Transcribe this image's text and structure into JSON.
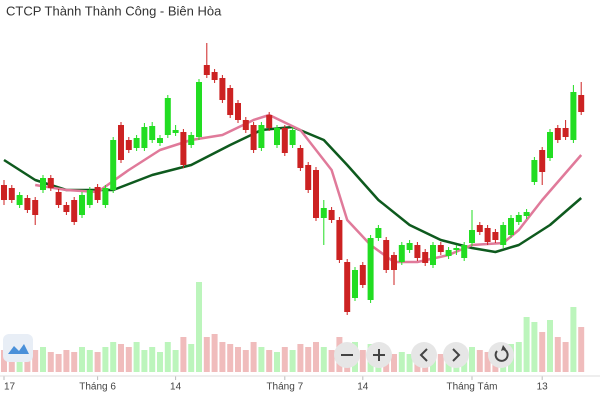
{
  "chart_data": {
    "type": "candlestick",
    "title": "CTCP Thành Thành Công - Biên Hòa",
    "categories": [
      "17",
      null,
      null,
      null,
      null,
      null,
      null,
      null,
      null,
      null,
      null,
      null,
      "Tháng 6",
      null,
      null,
      null,
      null,
      null,
      null,
      null,
      null,
      null,
      "14",
      null,
      null,
      null,
      null,
      null,
      null,
      null,
      null,
      null,
      null,
      null,
      null,
      null,
      "Tháng 7",
      null,
      null,
      null,
      null,
      null,
      null,
      null,
      null,
      null,
      "14",
      null,
      null,
      null,
      null,
      null,
      null,
      null,
      null,
      null,
      null,
      null,
      null,
      null,
      "Tháng Tám",
      null,
      null,
      null,
      null,
      null,
      null,
      null,
      null,
      "13",
      null,
      null,
      null,
      null,
      null
    ],
    "open": [
      150,
      147,
      130,
      137,
      135,
      145,
      157,
      143,
      130,
      135,
      120,
      130,
      148,
      130,
      145,
      210,
      195,
      187,
      187,
      195,
      192,
      200,
      202,
      203,
      190,
      198,
      270,
      263,
      257,
      247,
      232,
      215,
      210,
      187,
      220,
      190,
      207,
      190,
      187,
      170,
      165,
      117,
      125,
      115,
      73,
      37,
      70,
      35,
      97,
      95,
      80,
      73,
      85,
      90,
      83,
      70,
      90,
      79,
      85,
      77,
      92,
      110,
      107,
      103,
      90,
      100,
      113,
      119,
      153,
      185,
      177,
      207,
      207,
      195,
      240
    ],
    "high": [
      155,
      150,
      143,
      140,
      138,
      160,
      160,
      146,
      133,
      138,
      143,
      148,
      151,
      150,
      198,
      213,
      198,
      200,
      212,
      213,
      200,
      240,
      210,
      206,
      203,
      256,
      292,
      266,
      260,
      250,
      235,
      218,
      213,
      213,
      223,
      210,
      210,
      208,
      190,
      173,
      168,
      135,
      128,
      118,
      76,
      68,
      73,
      100,
      110,
      98,
      83,
      93,
      95,
      93,
      86,
      93,
      93,
      88,
      90,
      93,
      125,
      113,
      110,
      106,
      113,
      120,
      123,
      126,
      178,
      188,
      206,
      210,
      215,
      250,
      253
    ],
    "low": [
      130,
      132,
      127,
      122,
      110,
      142,
      144,
      127,
      120,
      110,
      117,
      127,
      132,
      127,
      142,
      172,
      182,
      184,
      184,
      192,
      189,
      197,
      199,
      167,
      187,
      195,
      257,
      252,
      232,
      217,
      212,
      202,
      182,
      184,
      204,
      187,
      179,
      187,
      164,
      142,
      114,
      90,
      112,
      72,
      20,
      34,
      47,
      32,
      94,
      62,
      50,
      70,
      82,
      74,
      69,
      67,
      80,
      76,
      80,
      74,
      89,
      100,
      90,
      92,
      87,
      97,
      110,
      116,
      150,
      150,
      174,
      192,
      195,
      192,
      220
    ],
    "close": [
      135,
      135,
      140,
      125,
      120,
      157,
      147,
      130,
      123,
      113,
      140,
      145,
      135,
      147,
      195,
      175,
      185,
      197,
      208,
      209,
      197,
      237,
      205,
      170,
      200,
      253,
      260,
      255,
      235,
      220,
      215,
      205,
      185,
      210,
      207,
      207,
      182,
      205,
      167,
      145,
      117,
      127,
      115,
      75,
      23,
      65,
      50,
      97,
      107,
      65,
      65,
      90,
      92,
      77,
      72,
      90,
      83,
      85,
      87,
      90,
      105,
      103,
      93,
      95,
      110,
      117,
      120,
      123,
      175,
      163,
      203,
      195,
      198,
      243,
      223
    ],
    "volume": [
      22,
      20,
      18,
      20,
      22,
      25,
      20,
      18,
      22,
      20,
      25,
      22,
      20,
      25,
      30,
      28,
      25,
      30,
      22,
      25,
      20,
      30,
      22,
      35,
      28,
      90,
      35,
      38,
      30,
      28,
      25,
      22,
      30,
      25,
      22,
      20,
      25,
      22,
      28,
      25,
      30,
      25,
      22,
      35,
      25,
      30,
      22,
      28,
      20,
      22,
      18,
      20,
      18,
      20,
      22,
      20,
      18,
      22,
      18,
      20,
      25,
      22,
      20,
      25,
      22,
      28,
      30,
      55,
      50,
      40,
      52,
      35,
      30,
      65,
      45
    ],
    "up_color": "#22dd22",
    "down_color": "#cc2222",
    "ylim": [
      0,
      300
    ],
    "volume_lim": [
      0,
      100
    ],
    "lines": [
      {
        "color": "#0e5a1e",
        "x": [
          0,
          4,
          8,
          14,
          19,
          24,
          29,
          33,
          37,
          41,
          44,
          48,
          52,
          56,
          60,
          63,
          66,
          70,
          74
        ],
        "values": [
          175,
          155,
          145,
          145,
          160,
          170,
          190,
          205,
          208,
          195,
          170,
          135,
          110,
          95,
          87,
          83,
          90,
          110,
          137
        ]
      },
      {
        "color": "#e07a9a",
        "x": [
          4,
          8,
          12,
          16,
          20,
          24,
          28,
          32,
          34,
          38,
          42,
          44,
          47,
          50,
          53,
          57,
          60,
          64,
          66,
          69,
          74
        ],
        "values": [
          150,
          145,
          143,
          165,
          185,
          195,
          200,
          215,
          220,
          205,
          165,
          115,
          90,
          73,
          73,
          80,
          90,
          92,
          105,
          135,
          180
        ]
      }
    ]
  }
}
